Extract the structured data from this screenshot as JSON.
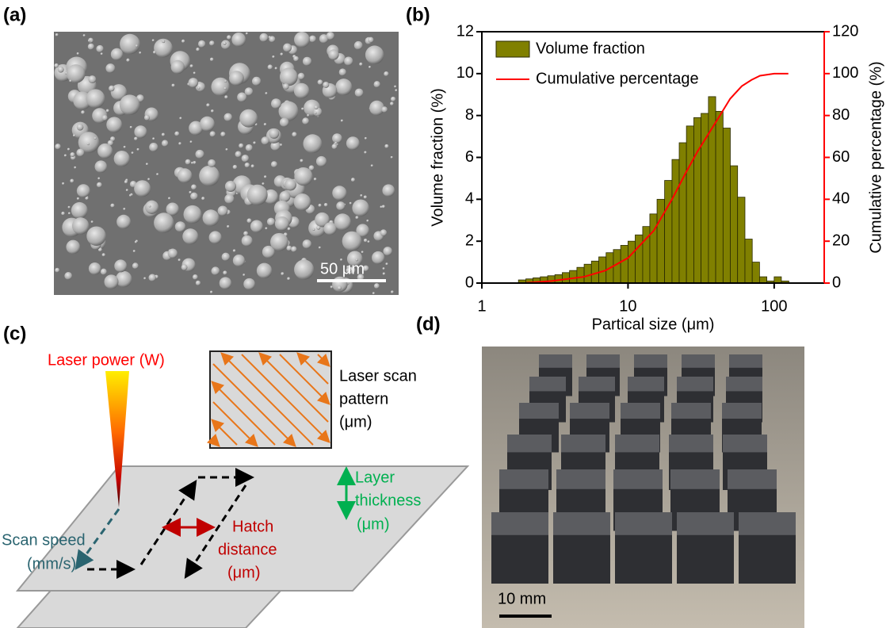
{
  "panels": {
    "a": {
      "label": "(a)",
      "scale_bar": "50 μm"
    },
    "b": {
      "label": "(b)"
    },
    "c": {
      "label": "(c)",
      "laser_power": "Laser power (W)",
      "scan_pattern": [
        "Laser scan",
        "pattern",
        "(μm)"
      ],
      "scan_speed": [
        "Scan speed",
        "(mm/s)"
      ],
      "hatch_distance": [
        "Hatch",
        "distance",
        "(μm)"
      ],
      "layer_thickness": [
        "Layer",
        "thickness",
        "(μm)"
      ]
    },
    "d": {
      "label": "(d)",
      "scale_bar": "10 mm"
    }
  },
  "chart_data": {
    "type": "histogram",
    "x_label": "Partical size (μm)",
    "y_label": "Volume fraction (%)",
    "y2_label": "Cumulative percentage (%)",
    "xscale": "log",
    "xlim": [
      1,
      220
    ],
    "xticks": [
      1,
      10,
      100
    ],
    "ylim": [
      0,
      12
    ],
    "yticks": [
      0,
      2,
      4,
      6,
      8,
      10,
      12
    ],
    "y2lim": [
      0,
      120
    ],
    "y2ticks": [
      0,
      20,
      40,
      60,
      80,
      100,
      120
    ],
    "legend": "upper left",
    "series": [
      {
        "name": "Volume fraction",
        "color": "#808000",
        "bins": [
          1.78,
          2.0,
          2.24,
          2.51,
          2.82,
          3.16,
          3.55,
          3.98,
          4.47,
          5.01,
          5.62,
          6.31,
          7.08,
          7.94,
          8.91,
          10.0,
          11.2,
          12.6,
          14.1,
          15.8,
          17.8,
          20.0,
          22.4,
          25.1,
          28.2,
          31.6,
          35.5,
          39.8,
          44.7,
          50.1,
          56.2,
          63.1,
          70.8,
          79.4,
          89.1,
          100,
          112,
          126,
          141
        ],
        "values": [
          0.15,
          0.2,
          0.25,
          0.3,
          0.35,
          0.4,
          0.5,
          0.6,
          0.75,
          0.9,
          1.05,
          1.25,
          1.45,
          1.6,
          1.8,
          2.0,
          2.3,
          2.7,
          3.3,
          4.0,
          4.9,
          5.9,
          6.7,
          7.5,
          7.9,
          8.1,
          8.9,
          8.2,
          7.4,
          5.6,
          4.1,
          2.1,
          1.0,
          0.3,
          0.1,
          0.3,
          0.1,
          0
        ]
      },
      {
        "name": "Cumulative percentage",
        "color": "#ff0000",
        "type": "line",
        "axis": "y2",
        "x": [
          2,
          3,
          5,
          7,
          10,
          15,
          20,
          25,
          30,
          40,
          50,
          60,
          70,
          80,
          100,
          125
        ],
        "values": [
          0.1,
          1,
          3,
          6,
          12,
          25,
          40,
          53,
          63,
          77,
          88,
          94,
          97,
          99,
          100,
          100
        ]
      }
    ]
  }
}
